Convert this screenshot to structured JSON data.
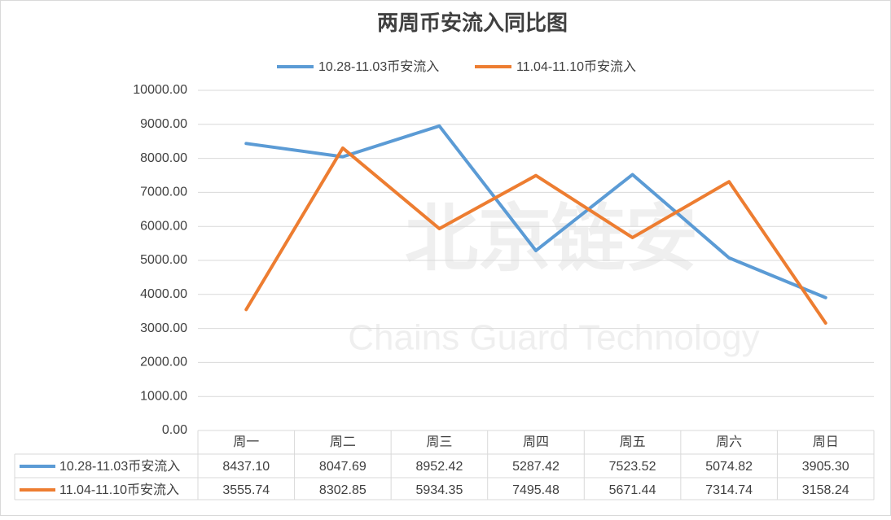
{
  "chart_data": {
    "type": "line",
    "title": "两周币安流入同比图",
    "watermark": [
      "北京链安",
      "Chains Guard Technology"
    ],
    "categories": [
      "周一",
      "周二",
      "周三",
      "周四",
      "周五",
      "周六",
      "周日"
    ],
    "series": [
      {
        "name": "10.28-11.03币安流入",
        "color": "#5b9bd5",
        "values": [
          8437.1,
          8047.69,
          8952.42,
          5287.42,
          7523.52,
          5074.82,
          3905.3
        ],
        "value_labels": [
          "8437.10",
          "8047.69",
          "8952.42",
          "5287.42",
          "7523.52",
          "5074.82",
          "3905.30"
        ]
      },
      {
        "name": "11.04-11.10币安流入",
        "color": "#ed7d31",
        "values": [
          3555.74,
          8302.85,
          5934.35,
          7495.48,
          5671.44,
          7314.74,
          3158.24
        ],
        "value_labels": [
          "3555.74",
          "8302.85",
          "5934.35",
          "7495.48",
          "5671.44",
          "7314.74",
          "3158.24"
        ]
      }
    ],
    "ylim": [
      0,
      10000
    ],
    "yticks": [
      {
        "value": 0,
        "label": "0.00"
      },
      {
        "value": 1000,
        "label": "1000.00"
      },
      {
        "value": 2000,
        "label": "2000.00"
      },
      {
        "value": 3000,
        "label": "3000.00"
      },
      {
        "value": 4000,
        "label": "4000.00"
      },
      {
        "value": 5000,
        "label": "5000.00"
      },
      {
        "value": 6000,
        "label": "6000.00"
      },
      {
        "value": 7000,
        "label": "7000.00"
      },
      {
        "value": 8000,
        "label": "8000.00"
      },
      {
        "value": 9000,
        "label": "9000.00"
      },
      {
        "value": 10000,
        "label": "10000.00"
      }
    ],
    "grid": true,
    "legend": "top",
    "data_table": true
  }
}
